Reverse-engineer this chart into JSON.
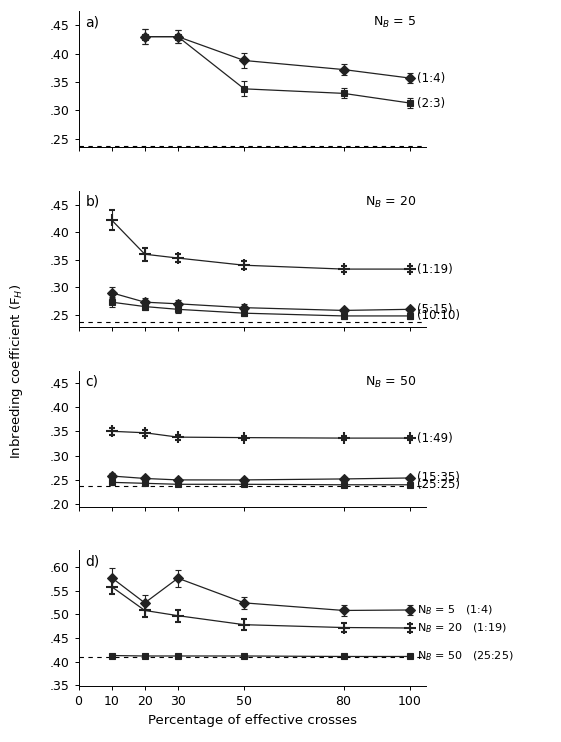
{
  "panel_a": {
    "title": "N$_B$ = 5",
    "label": "a)",
    "series": [
      {
        "label": "(1:4)",
        "y": [
          0.43,
          0.43,
          0.388,
          0.372,
          0.357
        ],
        "yerr": [
          0.013,
          0.012,
          0.014,
          0.01,
          0.009
        ],
        "x": [
          20,
          30,
          50,
          80,
          100
        ],
        "marker": "D",
        "linestyle": "-",
        "color": "#222222",
        "markersize": 5
      },
      {
        "label": "(2:3)",
        "y": [
          0.43,
          0.43,
          0.338,
          0.33,
          0.313
        ],
        "yerr": [
          0.013,
          0.012,
          0.013,
          0.009,
          0.009
        ],
        "x": [
          20,
          30,
          50,
          80,
          100
        ],
        "marker": "s",
        "linestyle": "-",
        "color": "#222222",
        "markersize": 5
      }
    ],
    "dashed_line": 0.237,
    "ylim": [
      0.235,
      0.475
    ],
    "yticks": [
      0.25,
      0.3,
      0.35,
      0.4,
      0.45
    ]
  },
  "panel_b": {
    "title": "N$_B$ = 20",
    "label": "b)",
    "series": [
      {
        "label": "(1:19)",
        "y": [
          0.422,
          0.36,
          0.353,
          0.34,
          0.333,
          0.333
        ],
        "yerr": [
          0.018,
          0.012,
          0.008,
          0.007,
          0.006,
          0.005
        ],
        "x": [
          10,
          20,
          30,
          50,
          80,
          100
        ],
        "marker": "+",
        "linestyle": "-",
        "color": "#222222",
        "markersize": 8,
        "markeredgewidth": 1.5
      },
      {
        "label": "(5:15)",
        "y": [
          0.29,
          0.273,
          0.27,
          0.263,
          0.258,
          0.26
        ],
        "yerr": [
          0.01,
          0.008,
          0.007,
          0.006,
          0.005,
          0.005
        ],
        "x": [
          10,
          20,
          30,
          50,
          80,
          100
        ],
        "marker": "D",
        "linestyle": "-",
        "color": "#222222",
        "markersize": 5
      },
      {
        "label": "(10:10)",
        "y": [
          0.273,
          0.265,
          0.26,
          0.253,
          0.248,
          0.248
        ],
        "yerr": [
          0.009,
          0.007,
          0.006,
          0.005,
          0.005,
          0.005
        ],
        "x": [
          10,
          20,
          30,
          50,
          80,
          100
        ],
        "marker": "s",
        "linestyle": "-",
        "color": "#222222",
        "markersize": 5
      }
    ],
    "dashed_line": 0.237,
    "ylim": [
      0.228,
      0.475
    ],
    "yticks": [
      0.25,
      0.3,
      0.35,
      0.4,
      0.45
    ]
  },
  "panel_c": {
    "title": "N$_B$ = 50",
    "label": "c)",
    "series": [
      {
        "label": "(1:49)",
        "y": [
          0.35,
          0.347,
          0.338,
          0.337,
          0.336,
          0.336
        ],
        "yerr": [
          0.007,
          0.006,
          0.005,
          0.004,
          0.004,
          0.004
        ],
        "x": [
          10,
          20,
          30,
          50,
          80,
          100
        ],
        "marker": "+",
        "linestyle": "-",
        "color": "#222222",
        "markersize": 8,
        "markeredgewidth": 1.5
      },
      {
        "label": "(15:35)",
        "y": [
          0.258,
          0.253,
          0.25,
          0.25,
          0.252,
          0.254
        ],
        "yerr": [
          0.006,
          0.005,
          0.004,
          0.004,
          0.004,
          0.004
        ],
        "x": [
          10,
          20,
          30,
          50,
          80,
          100
        ],
        "marker": "D",
        "linestyle": "-",
        "color": "#222222",
        "markersize": 5
      },
      {
        "label": "(25:25)",
        "y": [
          0.245,
          0.243,
          0.241,
          0.241,
          0.24,
          0.24
        ],
        "yerr": [
          0.005,
          0.004,
          0.004,
          0.003,
          0.003,
          0.003
        ],
        "x": [
          10,
          20,
          30,
          50,
          80,
          100
        ],
        "marker": "s",
        "linestyle": "-",
        "color": "#222222",
        "markersize": 5
      }
    ],
    "dashed_line": 0.237,
    "ylim": [
      0.195,
      0.475
    ],
    "yticks": [
      0.2,
      0.25,
      0.3,
      0.35,
      0.4,
      0.45
    ]
  },
  "panel_d": {
    "label": "d)",
    "series": [
      {
        "label_nb": "N$_B$ = 5",
        "label_ratio": "(1:4)",
        "y": [
          0.577,
          0.524,
          0.576,
          0.524,
          0.508,
          0.509
        ],
        "yerr": [
          0.02,
          0.016,
          0.018,
          0.013,
          0.011,
          0.011
        ],
        "x": [
          10,
          20,
          30,
          50,
          80,
          100
        ],
        "marker": "D",
        "linestyle": "-",
        "color": "#222222",
        "markersize": 5
      },
      {
        "label_nb": "N$_B$ = 20",
        "label_ratio": "(1:19)",
        "y": [
          0.558,
          0.508,
          0.497,
          0.478,
          0.472,
          0.471
        ],
        "yerr": [
          0.016,
          0.014,
          0.013,
          0.011,
          0.009,
          0.009
        ],
        "x": [
          10,
          20,
          30,
          50,
          80,
          100
        ],
        "marker": "+",
        "linestyle": "-",
        "color": "#222222",
        "markersize": 8,
        "markeredgewidth": 1.5
      },
      {
        "label_nb": "N$_B$ = 50",
        "label_ratio": "(25:25)",
        "y": [
          0.413,
          0.412,
          0.412,
          0.412,
          0.411,
          0.411
        ],
        "yerr": [
          0.004,
          0.004,
          0.003,
          0.003,
          0.003,
          0.003
        ],
        "x": [
          10,
          20,
          30,
          50,
          80,
          100
        ],
        "marker": "s",
        "linestyle": "-",
        "color": "#222222",
        "markersize": 5
      }
    ],
    "dashed_line": 0.41,
    "ylim": [
      0.348,
      0.635
    ],
    "yticks": [
      0.35,
      0.4,
      0.45,
      0.5,
      0.55,
      0.6
    ]
  },
  "xlabel": "Percentage of effective crosses",
  "ylabel": "Inbreeding coefficient (F$_H$)",
  "xlim": [
    0,
    105
  ],
  "xticks": [
    0,
    10,
    20,
    30,
    50,
    80,
    100
  ]
}
